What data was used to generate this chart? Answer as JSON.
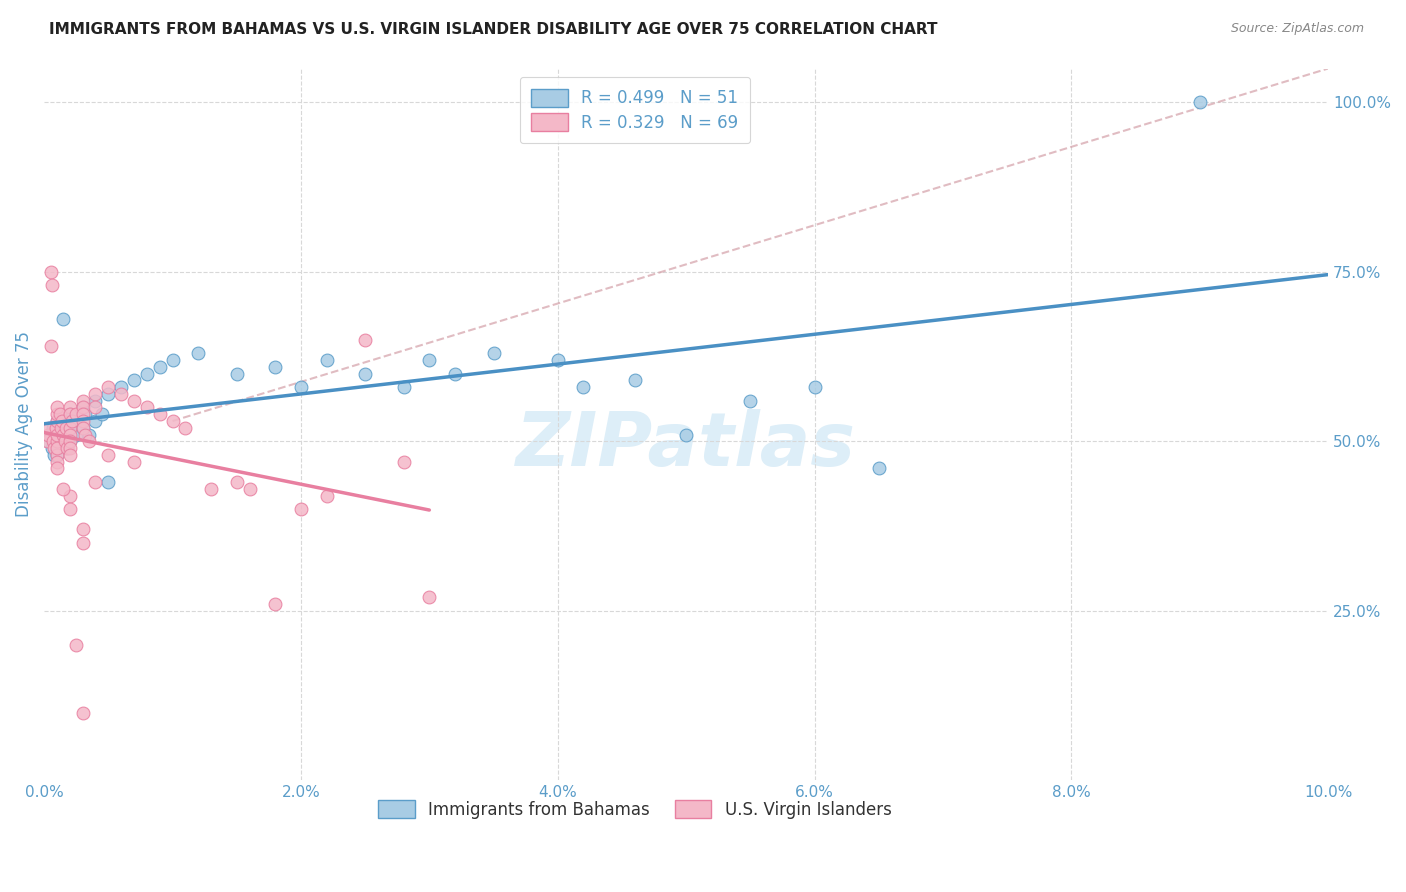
{
  "title": "IMMIGRANTS FROM BAHAMAS VS U.S. VIRGIN ISLANDER DISABILITY AGE OVER 75 CORRELATION CHART",
  "source": "Source: ZipAtlas.com",
  "ylabel": "Disability Age Over 75",
  "legend1_label": "R = 0.499   N = 51",
  "legend2_label": "R = 0.329   N = 69",
  "legend_foot1": "Immigrants from Bahamas",
  "legend_foot2": "U.S. Virgin Islanders",
  "blue_color": "#a8cce4",
  "blue_edge": "#5b9dc9",
  "pink_color": "#f4b8c8",
  "pink_edge": "#e87fa0",
  "blue_line_color": "#4a90c4",
  "pink_line_color": "#e87fa0",
  "dash_color": "#c8b8b8",
  "watermark": "ZIPatlas",
  "watermark_color": "#ddeef8",
  "title_color": "#222222",
  "axis_color": "#5b9dc9",
  "blue_scatter_x": [
    0.0003,
    0.0005,
    0.0006,
    0.0007,
    0.0008,
    0.0009,
    0.001,
    0.001,
    0.001,
    0.0012,
    0.0013,
    0.0015,
    0.0016,
    0.0018,
    0.002,
    0.002,
    0.002,
    0.0022,
    0.0025,
    0.003,
    0.003,
    0.0032,
    0.0035,
    0.004,
    0.004,
    0.0045,
    0.005,
    0.005,
    0.006,
    0.007,
    0.008,
    0.009,
    0.01,
    0.012,
    0.015,
    0.018,
    0.02,
    0.022,
    0.025,
    0.028,
    0.03,
    0.032,
    0.035,
    0.04,
    0.042,
    0.046,
    0.05,
    0.055,
    0.06,
    0.065,
    0.09
  ],
  "blue_scatter_y": [
    0.5,
    0.51,
    0.49,
    0.52,
    0.48,
    0.51,
    0.53,
    0.5,
    0.48,
    0.52,
    0.51,
    0.68,
    0.5,
    0.49,
    0.54,
    0.52,
    0.5,
    0.53,
    0.51,
    0.55,
    0.52,
    0.54,
    0.51,
    0.56,
    0.53,
    0.54,
    0.57,
    0.44,
    0.58,
    0.59,
    0.6,
    0.61,
    0.62,
    0.63,
    0.6,
    0.61,
    0.58,
    0.62,
    0.6,
    0.58,
    0.62,
    0.6,
    0.63,
    0.62,
    0.58,
    0.59,
    0.51,
    0.56,
    0.58,
    0.46,
    1.0
  ],
  "pink_scatter_x": [
    0.0002,
    0.0003,
    0.0004,
    0.0005,
    0.0005,
    0.0006,
    0.0007,
    0.0008,
    0.0009,
    0.001,
    0.001,
    0.001,
    0.001,
    0.001,
    0.001,
    0.001,
    0.001,
    0.001,
    0.0012,
    0.0013,
    0.0014,
    0.0015,
    0.0016,
    0.0017,
    0.0018,
    0.002,
    0.002,
    0.002,
    0.002,
    0.002,
    0.002,
    0.002,
    0.0022,
    0.0025,
    0.003,
    0.003,
    0.003,
    0.003,
    0.003,
    0.0032,
    0.0035,
    0.004,
    0.004,
    0.004,
    0.005,
    0.005,
    0.006,
    0.007,
    0.007,
    0.008,
    0.009,
    0.01,
    0.011,
    0.013,
    0.015,
    0.016,
    0.018,
    0.02,
    0.022,
    0.025,
    0.028,
    0.03,
    0.002,
    0.002,
    0.0015,
    0.003,
    0.003,
    0.0025,
    0.003
  ],
  "pink_scatter_y": [
    0.5,
    0.51,
    0.52,
    0.75,
    0.64,
    0.73,
    0.5,
    0.49,
    0.52,
    0.53,
    0.54,
    0.55,
    0.5,
    0.48,
    0.51,
    0.47,
    0.46,
    0.49,
    0.54,
    0.52,
    0.53,
    0.51,
    0.5,
    0.52,
    0.49,
    0.55,
    0.54,
    0.52,
    0.51,
    0.5,
    0.49,
    0.48,
    0.53,
    0.54,
    0.56,
    0.55,
    0.54,
    0.53,
    0.52,
    0.51,
    0.5,
    0.57,
    0.55,
    0.44,
    0.58,
    0.48,
    0.57,
    0.56,
    0.47,
    0.55,
    0.54,
    0.53,
    0.52,
    0.43,
    0.44,
    0.43,
    0.26,
    0.4,
    0.42,
    0.65,
    0.47,
    0.27,
    0.42,
    0.4,
    0.43,
    0.37,
    0.35,
    0.2,
    0.1
  ],
  "xmin": 0.0,
  "xmax": 0.1,
  "ymin": 0.0,
  "ymax": 1.05,
  "ytick_vals": [
    0.25,
    0.5,
    0.75,
    1.0
  ],
  "ytick_labels": [
    "25.0%",
    "50.0%",
    "75.0%",
    "100.0%"
  ],
  "xtick_vals": [
    0.0,
    0.02,
    0.04,
    0.06,
    0.08,
    0.1
  ],
  "xtick_labels": [
    "0.0%",
    "2.0%",
    "4.0%",
    "6.0%",
    "8.0%",
    "10.0%"
  ],
  "title_fontsize": 11,
  "tick_fontsize": 11
}
